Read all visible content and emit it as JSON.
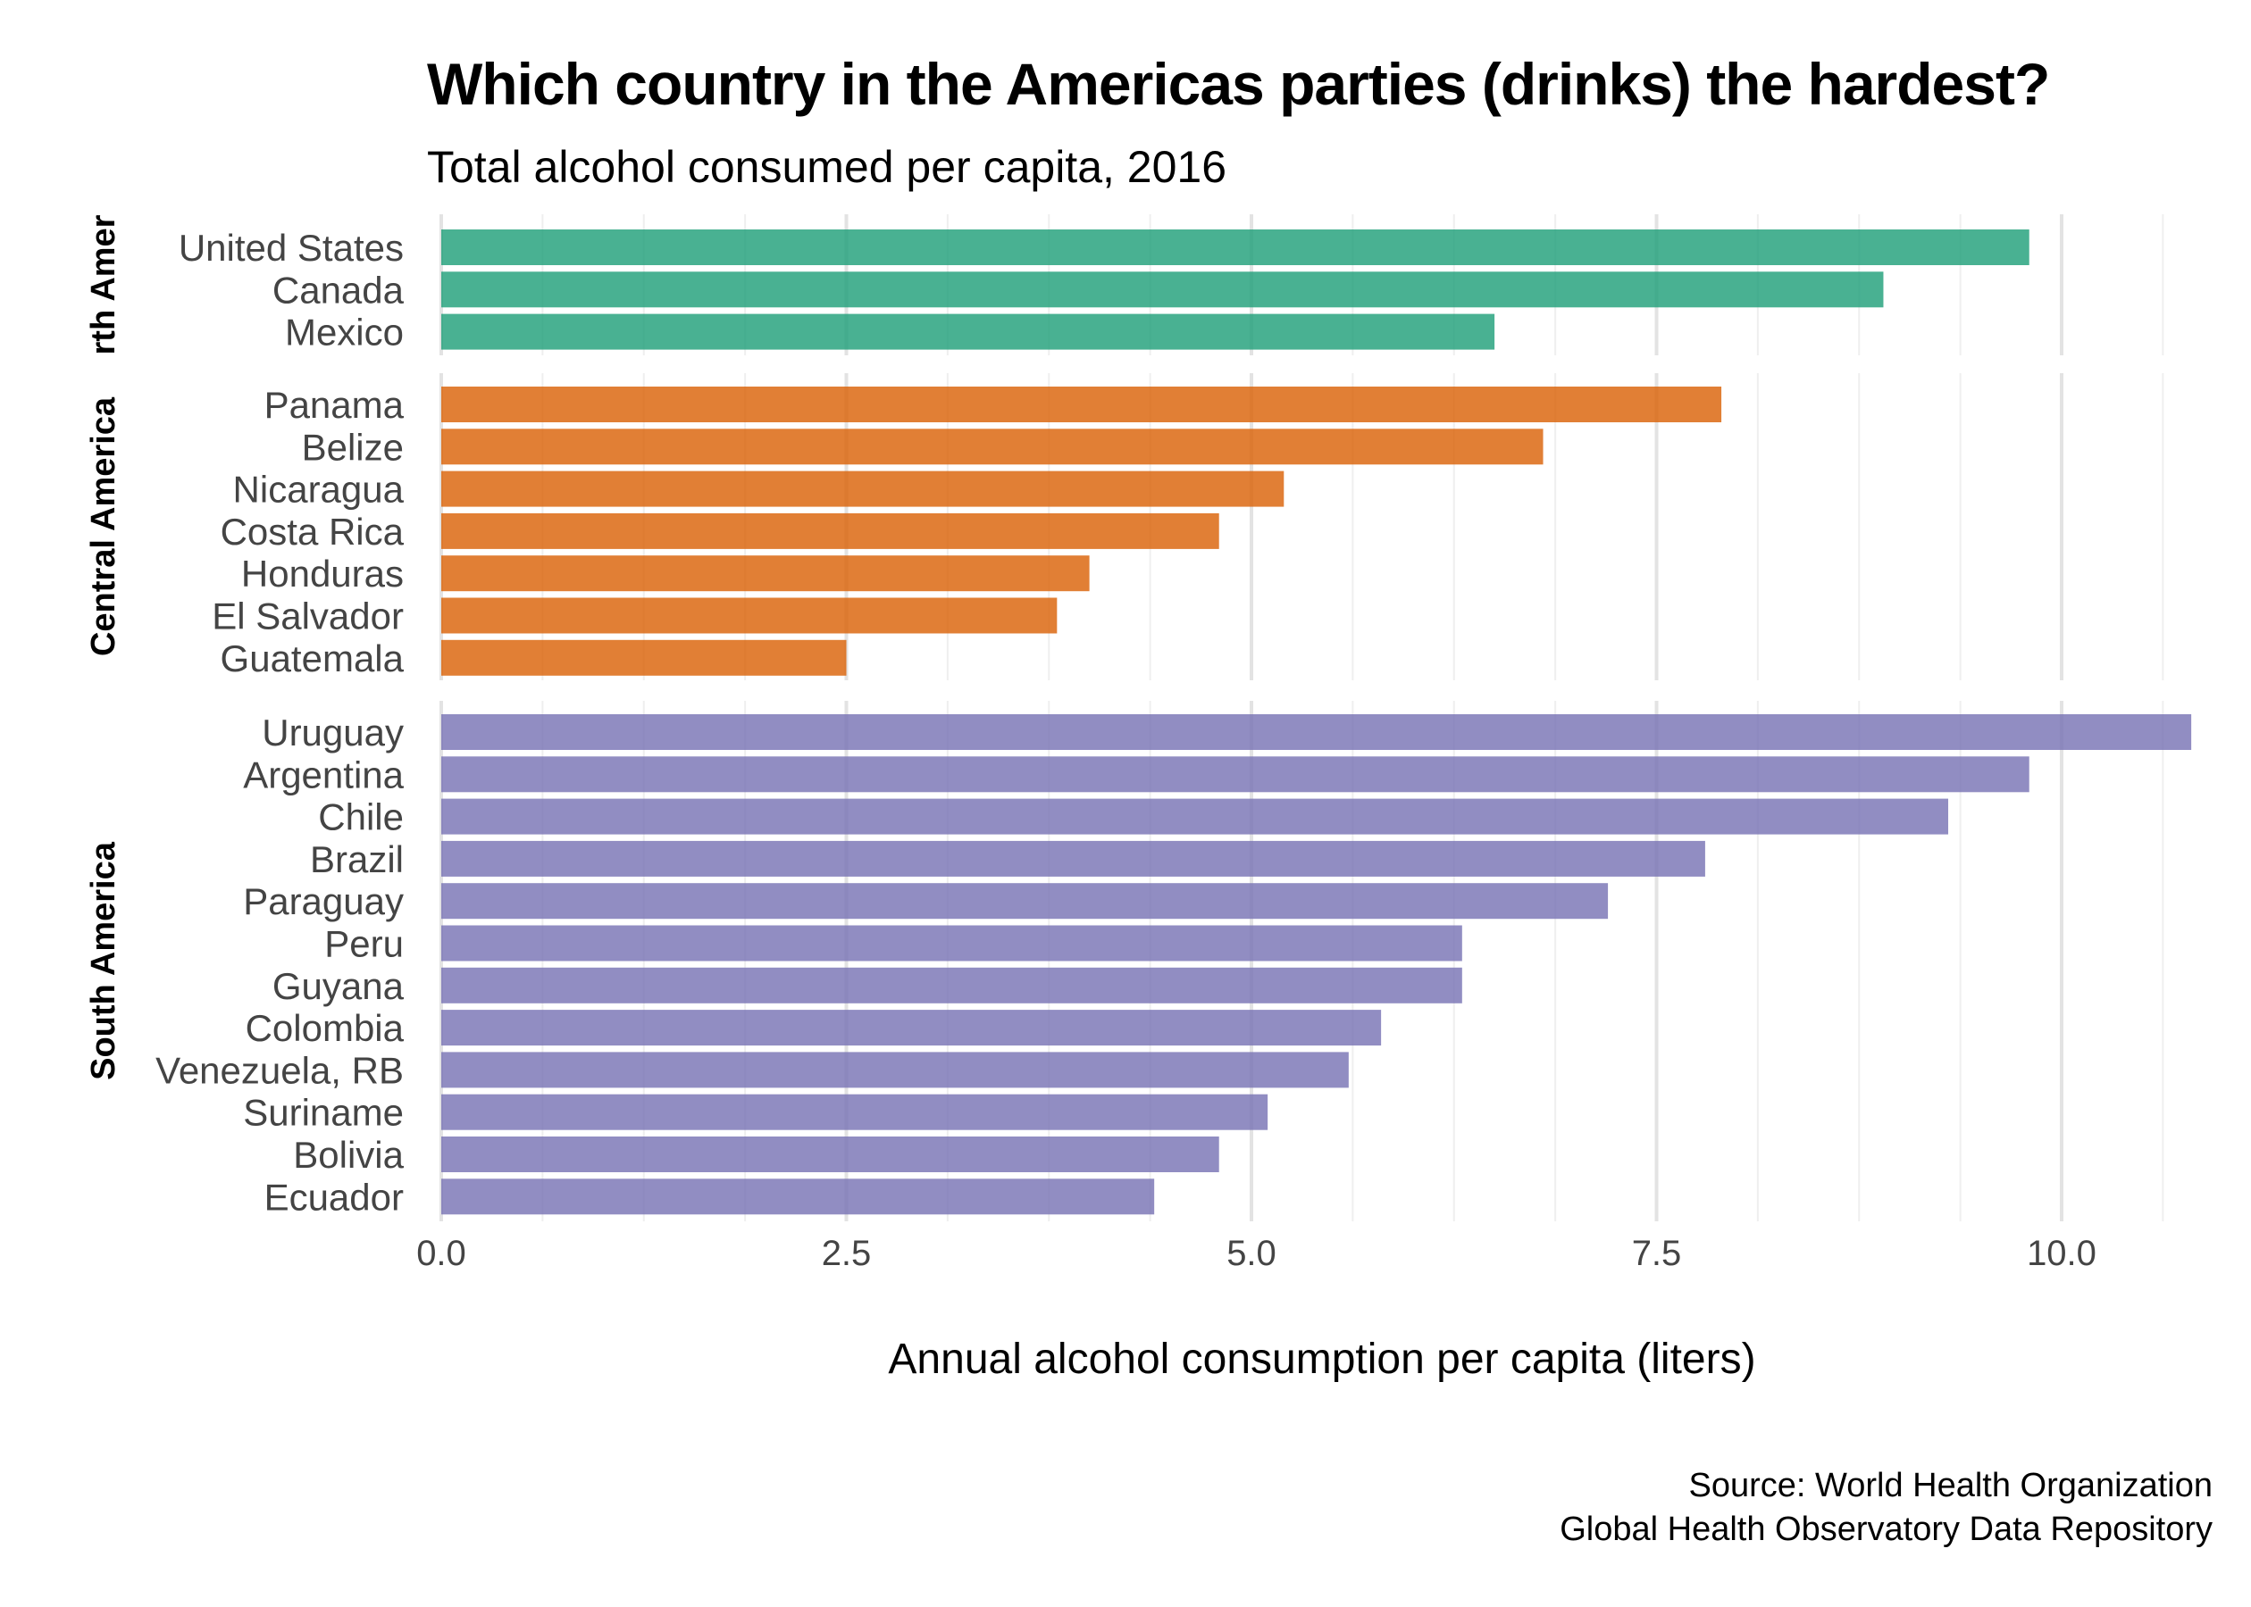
{
  "chart_data": {
    "type": "bar",
    "orientation": "horizontal",
    "title": "Which country in the Americas parties (drinks) the hardest?",
    "subtitle": "Total alcohol consumed per capita, 2016",
    "xlabel": "Annual alcohol consumption per capita (liters)",
    "ylabel": "",
    "xlim": [
      0,
      10.8
    ],
    "x_ticks": [
      "0.0",
      "2.5",
      "5.0",
      "7.5",
      "10.0"
    ],
    "grid": true,
    "legend": "none",
    "caption": [
      "Source: World Health Organization",
      "Global Health Observatory Data Repository"
    ],
    "facets": [
      {
        "name": "North America",
        "strip_text": "rth Amer",
        "color": "#1b9e77",
        "categories": [
          "United States",
          "Canada",
          "Mexico"
        ],
        "values": [
          9.8,
          8.9,
          6.5
        ]
      },
      {
        "name": "Central America",
        "strip_text": "Central America",
        "color": "#d95f02",
        "categories": [
          "Panama",
          "Belize",
          "Nicaragua",
          "Costa Rica",
          "Honduras",
          "El Salvador",
          "Guatemala"
        ],
        "values": [
          7.9,
          6.8,
          5.2,
          4.8,
          4.0,
          3.8,
          2.5
        ]
      },
      {
        "name": "South America",
        "strip_text": "South America",
        "color": "#7570b3",
        "categories": [
          "Uruguay",
          "Argentina",
          "Chile",
          "Brazil",
          "Paraguay",
          "Peru",
          "Guyana",
          "Colombia",
          "Venezuela, RB",
          "Suriname",
          "Bolivia",
          "Ecuador"
        ],
        "values": [
          10.8,
          9.8,
          9.3,
          7.8,
          7.2,
          6.3,
          6.3,
          5.8,
          5.6,
          5.1,
          4.8,
          4.4
        ]
      }
    ]
  }
}
